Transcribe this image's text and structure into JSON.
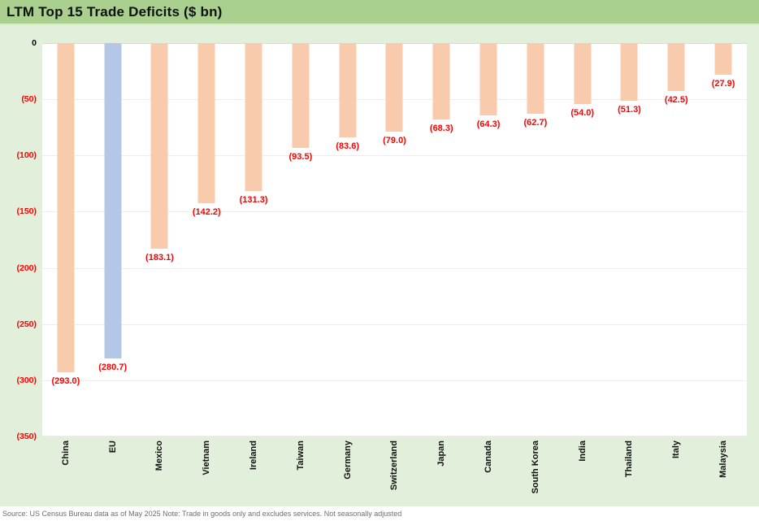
{
  "title": "LTM Top 15 Trade Deficits ($ bn)",
  "footer": "Source: US Census Bureau data as of May 2025 Note: Trade in goods only and excludes services. Not seasonally adjusted",
  "colors": {
    "title_bg": "#A9D08E",
    "canvas_bg": "#E2EFDA",
    "plot_bg": "#FFFFFF",
    "bar_default": "#F8CBAD",
    "bar_highlight": "#B4C7E7",
    "value_label": "#FF0000",
    "gridline": "#EDEDED"
  },
  "chart_data": {
    "type": "bar",
    "title": "LTM Top 15 Trade Deficits ($ bn)",
    "orientation": "vertical-negative",
    "categories": [
      "China",
      "EU",
      "Mexico",
      "Vietnam",
      "Ireland",
      "Taiwan",
      "Germany",
      "Switzerland",
      "Japan",
      "Canada",
      "South Korea",
      "India",
      "Thailand",
      "Italy",
      "Malaysia"
    ],
    "values": [
      -293.0,
      -280.7,
      -183.1,
      -142.2,
      -131.3,
      -93.5,
      -83.6,
      -79.0,
      -68.3,
      -64.3,
      -62.7,
      -54.0,
      -51.3,
      -42.5,
      -27.9
    ],
    "data_labels": [
      "(293.0)",
      "(280.7)",
      "(183.1)",
      "(142.2)",
      "(131.3)",
      "(93.5)",
      "(83.6)",
      "(79.0)",
      "(68.3)",
      "(64.3)",
      "(62.7)",
      "(54.0)",
      "(51.3)",
      "(42.5)",
      "(27.9)"
    ],
    "highlighted_category": "EU",
    "xlabel": "",
    "ylabel": "",
    "ylim": [
      -350,
      0
    ],
    "ytick_labels": [
      "0",
      "(50)",
      "(100)",
      "(150)",
      "(200)",
      "(250)",
      "(300)",
      "(350)"
    ],
    "ytick_values": [
      0,
      -50,
      -100,
      -150,
      -200,
      -250,
      -300,
      -350
    ],
    "grid": true,
    "legend": false
  }
}
